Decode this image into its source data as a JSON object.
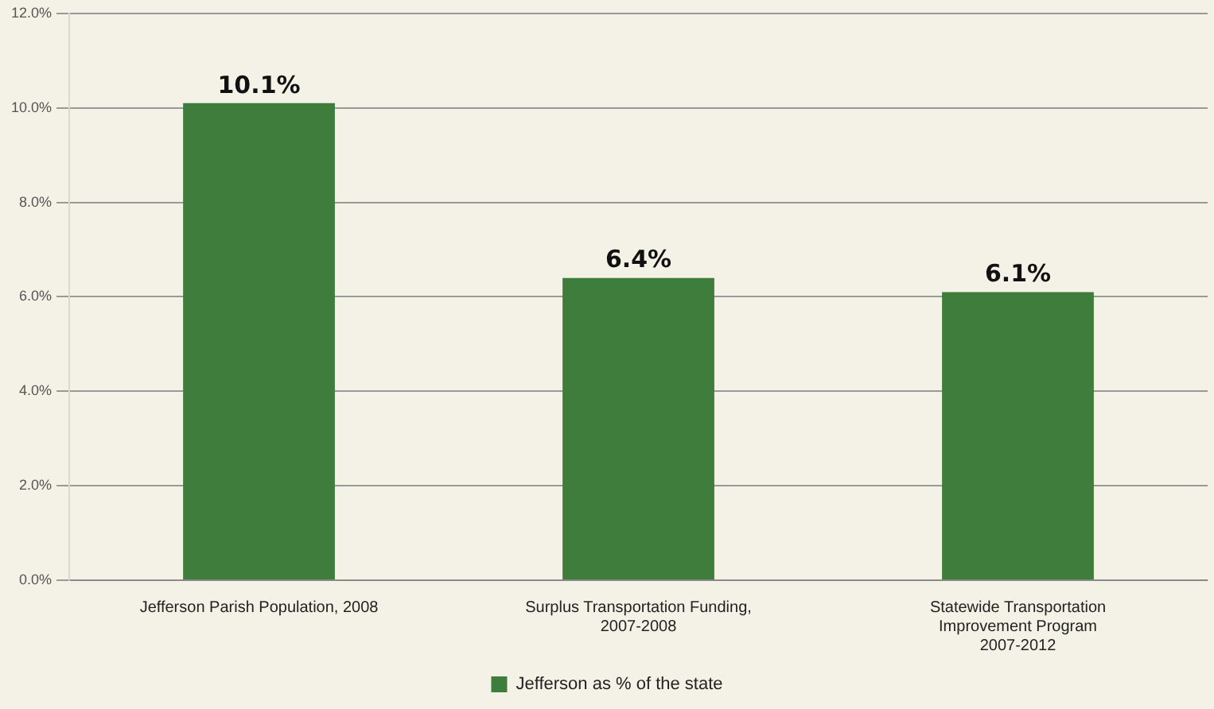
{
  "chart_data": {
    "type": "bar",
    "categories": [
      "Jefferson Parish Population, 2008",
      "Surplus Transportation Funding,\n2007-2008",
      "Statewide Transportation\nImprovement Program\n2007-2012"
    ],
    "series": [
      {
        "name": "Jefferson as % of the state",
        "color": "#3f7d3c",
        "values": [
          10.1,
          6.4,
          6.1
        ]
      }
    ],
    "value_labels": [
      "10.1%",
      "6.4%",
      "6.1%"
    ],
    "ylim": [
      0,
      12
    ],
    "yticks": [
      {
        "value": 0,
        "label": "0.0%"
      },
      {
        "value": 2,
        "label": "2.0%"
      },
      {
        "value": 4,
        "label": "4.0%"
      },
      {
        "value": 6,
        "label": "6.0%"
      },
      {
        "value": 8,
        "label": "8.0%"
      },
      {
        "value": 10,
        "label": "10.0%"
      },
      {
        "value": 12,
        "label": "12.0%"
      }
    ],
    "grid": "y",
    "legend": "bottom"
  }
}
